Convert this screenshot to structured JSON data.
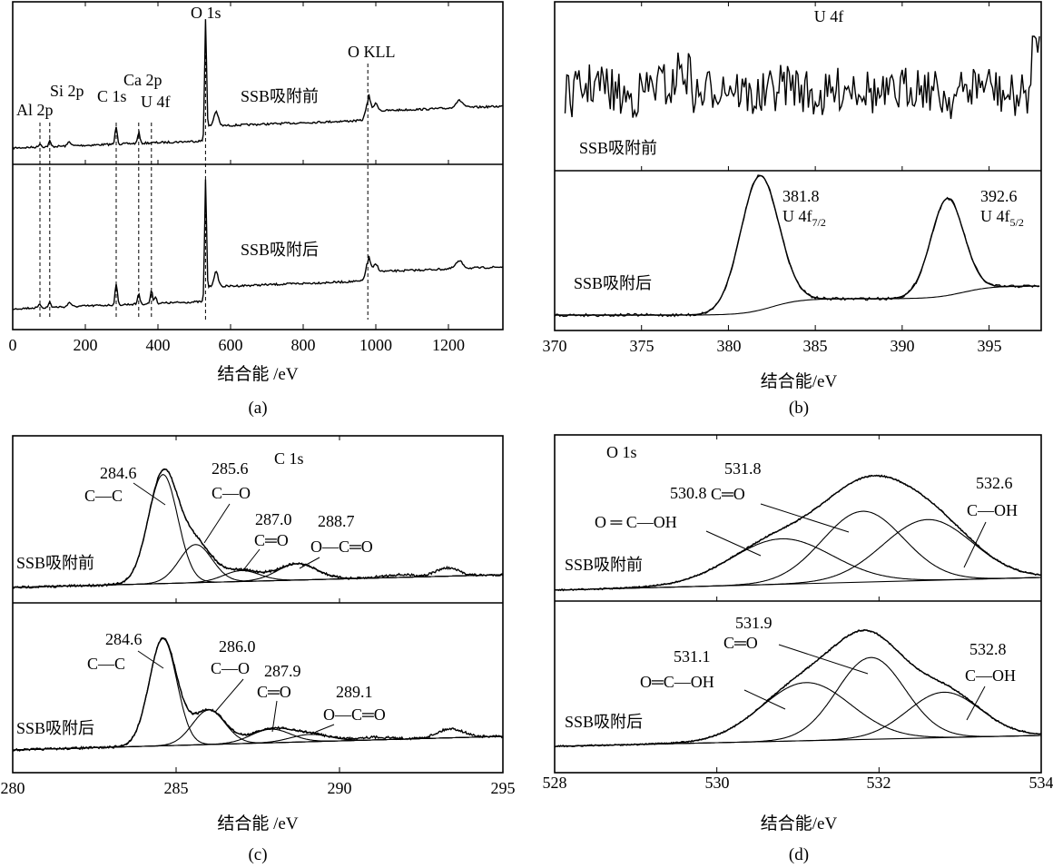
{
  "chart_data": [
    {
      "type": "line",
      "panel": "(a)",
      "xlabel": "结合能 /eV",
      "xlim": [
        0,
        1350
      ],
      "xticks": [
        0,
        200,
        400,
        600,
        800,
        1000,
        1200
      ],
      "series": [
        {
          "name": "SSB吸附前",
          "peaks": [
            {
              "label": "Al 2p",
              "x": 75,
              "dashed": true
            },
            {
              "label": "Si 2p",
              "x": 102,
              "dashed": true
            },
            {
              "label": "C 1s",
              "x": 285,
              "dashed": true
            },
            {
              "label": "Ca 2p",
              "x": 347,
              "dashed": true
            },
            {
              "label": "U 4f",
              "x": 382,
              "dashed": true
            },
            {
              "label": "O 1s",
              "x": 531,
              "dashed": true
            },
            {
              "label": "O KLL",
              "x": 978,
              "dashed": true
            }
          ]
        },
        {
          "name": "SSB吸附后"
        }
      ]
    },
    {
      "type": "line",
      "panel": "(b)",
      "title": "U 4f",
      "xlabel": "结合能/eV",
      "xlim": [
        370,
        398
      ],
      "xticks": [
        370,
        375,
        380,
        385,
        390,
        395
      ],
      "series": [
        {
          "name": "SSB吸附前",
          "note": "noise only"
        },
        {
          "name": "SSB吸附后",
          "peaks": [
            {
              "x": 381.8,
              "label": "U 4f7/2"
            },
            {
              "x": 392.6,
              "label": "U 4f5/2"
            }
          ]
        }
      ]
    },
    {
      "type": "line",
      "panel": "(c)",
      "title": "C 1s",
      "xlabel": "结合能 /eV",
      "xlim": [
        280,
        295
      ],
      "xticks": [
        280,
        285,
        290,
        295
      ],
      "series": [
        {
          "name": "SSB吸附前",
          "peaks": [
            {
              "x": 284.6,
              "label": "C—C"
            },
            {
              "x": 285.6,
              "label": "C—O"
            },
            {
              "x": 287.0,
              "label": "C═O"
            },
            {
              "x": 288.7,
              "label": "O—C═O"
            }
          ]
        },
        {
          "name": "SSB吸附后",
          "peaks": [
            {
              "x": 284.6,
              "label": "C—C"
            },
            {
              "x": 286.0,
              "label": "C—O"
            },
            {
              "x": 287.9,
              "label": "C═O"
            },
            {
              "x": 289.1,
              "label": "O—C═O"
            }
          ]
        }
      ]
    },
    {
      "type": "line",
      "panel": "(d)",
      "title": "O 1s",
      "xlabel": "结合能/eV",
      "xlim": [
        528,
        534
      ],
      "xticks": [
        528,
        530,
        532,
        534
      ],
      "series": [
        {
          "name": "SSB吸附前",
          "peaks": [
            {
              "x": 530.8,
              "label": "O ═ C—OH"
            },
            {
              "x": 531.8,
              "label": "C═O"
            },
            {
              "x": 532.6,
              "label": "C—OH"
            }
          ]
        },
        {
          "name": "SSB吸附后",
          "peaks": [
            {
              "x": 531.1,
              "label": "O═C—OH"
            },
            {
              "x": 531.9,
              "label": "C═O"
            },
            {
              "x": 532.8,
              "label": "C—OH"
            }
          ]
        }
      ]
    }
  ],
  "labels": {
    "a": {
      "before": "SSB吸附前",
      "after": "SSB吸附后",
      "al": "Al 2p",
      "si": "Si 2p",
      "c": "C 1s",
      "ca": "Ca 2p",
      "u": "U 4f",
      "o": "O 1s",
      "okll": "O KLL",
      "ticks": [
        "0",
        "200",
        "400",
        "600",
        "800",
        "1000",
        "1200"
      ],
      "xlabel": "结合能 /eV",
      "caption": "(a)"
    },
    "b": {
      "title": "U 4f",
      "before": "SSB吸附前",
      "after": "SSB吸附后",
      "p1_val": "381.8",
      "p1_main": "U 4f",
      "p1_sub": "7/2",
      "p2_val": "392.6",
      "p2_main": "U 4f",
      "p2_sub": "5/2",
      "ticks": [
        "370",
        "375",
        "380",
        "385",
        "390",
        "395"
      ],
      "xlabel": "结合能/eV",
      "caption": "(b)"
    },
    "c": {
      "title": "C 1s",
      "before": "SSB吸附前",
      "after": "SSB吸附后",
      "b1v": "284.6",
      "b1l": "C—C",
      "b2v": "285.6",
      "b2l": "C—O",
      "b3v": "287.0",
      "b3l": "C═O",
      "b4v": "288.7",
      "b4l": "O—C═O",
      "a1v": "284.6",
      "a1l": "C—C",
      "a2v": "286.0",
      "a2l": "C—O",
      "a3v": "287.9",
      "a3l": "C═O",
      "a4v": "289.1",
      "a4l": "O—C═O",
      "ticks": [
        "280",
        "285",
        "290",
        "295"
      ],
      "xlabel": "结合能 /eV",
      "caption": "(c)"
    },
    "d": {
      "title": "O 1s",
      "before": "SSB吸附前",
      "after": "SSB吸附后",
      "b1v": "530.8",
      "b1l": "O ═ C—OH",
      "b2v": "531.8",
      "b2l": "C═O",
      "b3v": "532.6",
      "b3l": "C—OH",
      "a1v": "531.1",
      "a1l": "O═C—OH",
      "a2v": "531.9",
      "a2l": "C═O",
      "a3v": "532.8",
      "a3l": "C—OH",
      "ticks": [
        "528",
        "530",
        "532",
        "534"
      ],
      "xlabel": "结合能/eV",
      "caption": "(d)"
    }
  }
}
